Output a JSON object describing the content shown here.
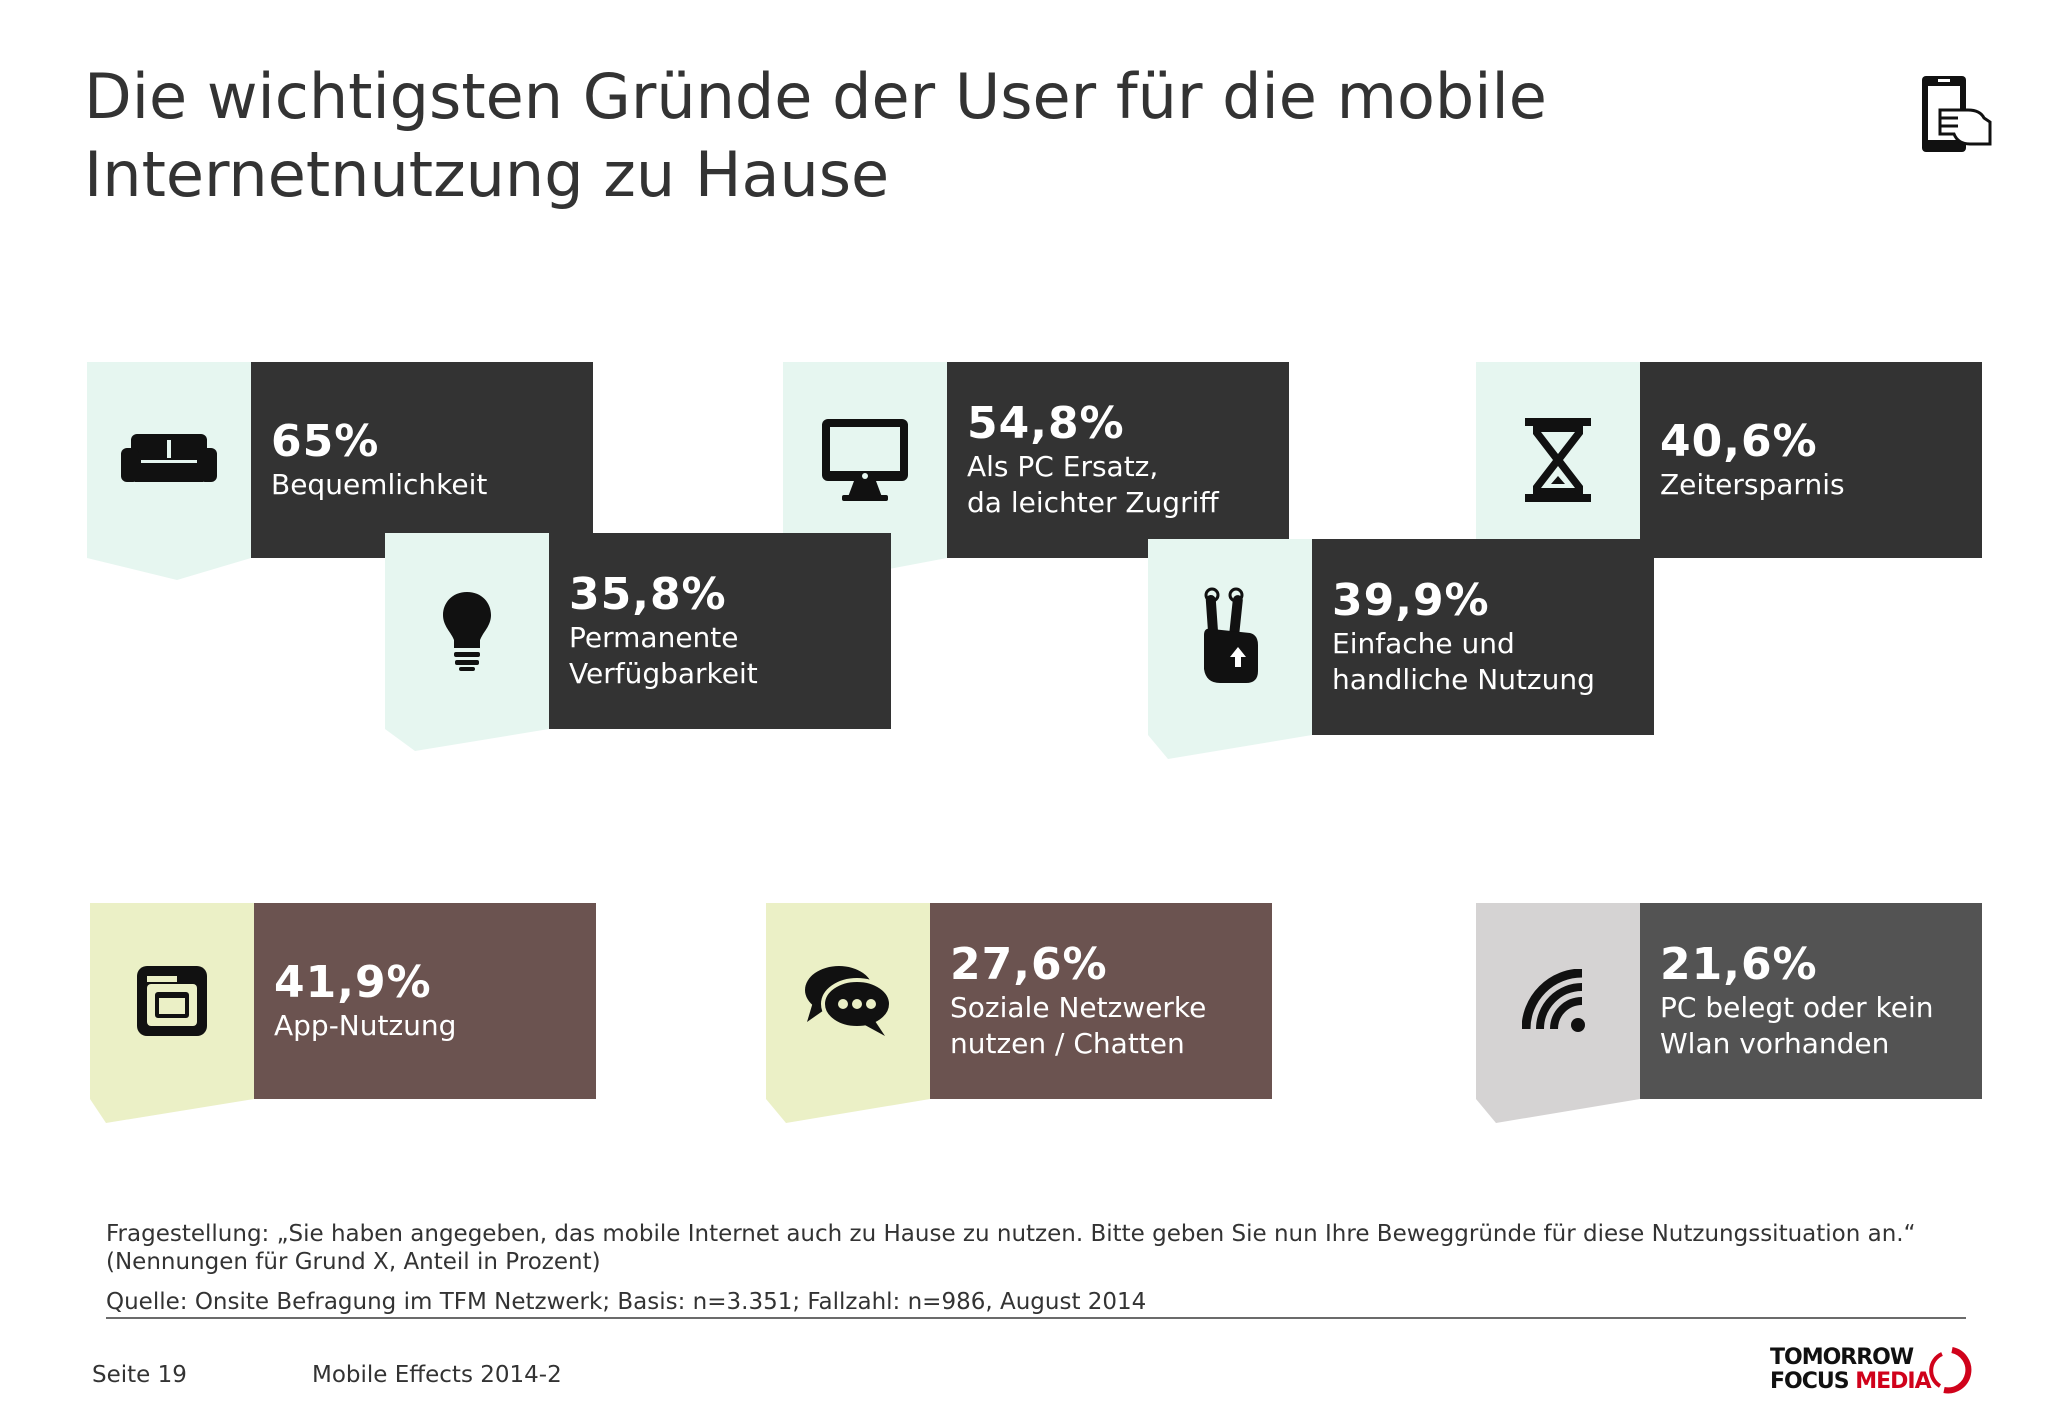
{
  "slide": {
    "title_line1": "Die wichtigsten Gründe der User für die mobile",
    "title_line2": "Internetnutzung zu Hause"
  },
  "colors": {
    "dark_card": "#333333",
    "brown_card": "#6b5350",
    "grey_card": "#535353",
    "mint_bg": "#e6f6f0",
    "cream_bg": "#ebf0c6",
    "light_grey_bg": "#d5d3d3",
    "accent_red": "#d0021b"
  },
  "reasons": [
    {
      "pct": "65%",
      "label": [
        "Bequemlichkeit"
      ],
      "icon": "sofa-icon"
    },
    {
      "pct": "54,8%",
      "label": [
        "Als PC Ersatz,",
        "da leichter Zugriff"
      ],
      "icon": "monitor-icon"
    },
    {
      "pct": "40,6%",
      "label": [
        "Zeitersparnis"
      ],
      "icon": "hourglass-icon"
    },
    {
      "pct": "35,8%",
      "label": [
        "Permanente",
        "Verfügbarkeit"
      ],
      "icon": "lightbulb-icon"
    },
    {
      "pct": "39,9%",
      "label": [
        "Einfache und",
        "handliche Nutzung"
      ],
      "icon": "two-finger-touch-icon"
    },
    {
      "pct": "41,9%",
      "label": [
        "App-Nutzung"
      ],
      "icon": "app-windows-icon"
    },
    {
      "pct": "27,6%",
      "label": [
        "Soziale Netzwerke",
        "nutzen / Chatten"
      ],
      "icon": "chat-bubbles-icon"
    },
    {
      "pct": "21,6%",
      "label": [
        "PC belegt oder kein",
        "Wlan vorhanden"
      ],
      "icon": "wifi-icon"
    }
  ],
  "footnote": {
    "question": "Fragestellung: „Sie haben angegeben, das mobile Internet auch zu Hause zu nutzen. Bitte geben Sie nun Ihre Beweggründe für diese Nutzungssituation an.“ (Nennungen für Grund X, Anteil in Prozent)",
    "source": "Quelle: Onsite Befragung im TFM Netzwerk; Basis: n=3.351; Fallzahl: n=986, August 2014"
  },
  "footer": {
    "page": "Seite 19",
    "title": "Mobile Effects 2014-2",
    "logo_line1": "TOMORROW",
    "logo_line2a": "FOCUS ",
    "logo_line2b": "MEDIA"
  }
}
